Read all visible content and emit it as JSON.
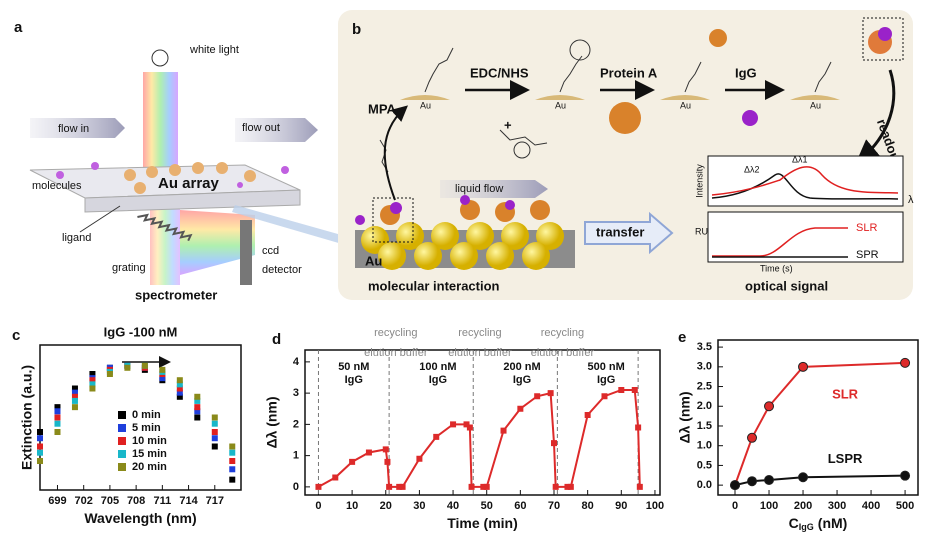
{
  "figure": {
    "a": {
      "letter": "a",
      "white_light": "white light",
      "flow_in": "flow in",
      "flow_out": "flow out",
      "molecules": "molecules",
      "au_array": "Au array",
      "ligand": "ligand",
      "grating": "grating",
      "ccd": "ccd",
      "detector": "detector",
      "spectrometer": "spectrometer"
    },
    "b": {
      "letter": "b",
      "mpa": "MPA",
      "edc": "EDC/NHS",
      "protein_a": "Protein A",
      "igg": "IgG",
      "au": "Au",
      "liquid_flow": "liquid flow",
      "transfer": "transfer",
      "readout": "readout",
      "intensity": "Intensity",
      "lambda": "λ",
      "dl2": "Δλ2",
      "dl1": "Δλ1",
      "ru": "RU",
      "time": "Time (s)",
      "slr": "SLR",
      "spr": "SPR",
      "molecular_interaction": "molecular interaction",
      "optical_signal": "optical signal"
    },
    "c": "c",
    "d": "d",
    "e": "e"
  },
  "chart_data": [
    {
      "type": "scatter",
      "title": "IgG -100 nM",
      "xlabel": "Wavelength (nm)",
      "ylabel": "Extinction (a.u.)",
      "marker": "square",
      "legend": "lower center",
      "x": [
        697,
        699,
        701,
        703,
        705,
        707,
        709,
        711,
        713,
        715,
        717,
        719
      ],
      "xlim": [
        697,
        720
      ],
      "xticks": [
        699,
        702,
        705,
        708,
        711,
        714,
        717
      ],
      "ylim": [
        0.4,
        1.1
      ],
      "series": [
        {
          "name": "0 min",
          "color": "#000000",
          "values": [
            0.68,
            0.8,
            0.89,
            0.96,
            0.99,
            1.0,
            0.98,
            0.93,
            0.85,
            0.75,
            0.61,
            0.45
          ]
        },
        {
          "name": "5 min",
          "color": "#1f3fdc",
          "values": [
            0.65,
            0.78,
            0.87,
            0.94,
            0.99,
            1.0,
            0.99,
            0.94,
            0.87,
            0.78,
            0.65,
            0.5
          ]
        },
        {
          "name": "10 min",
          "color": "#e02020",
          "values": [
            0.61,
            0.75,
            0.85,
            0.93,
            0.98,
            1.0,
            0.99,
            0.96,
            0.89,
            0.8,
            0.68,
            0.54
          ]
        },
        {
          "name": "15 min",
          "color": "#18b7c9",
          "values": [
            0.58,
            0.72,
            0.83,
            0.91,
            0.97,
            1.0,
            1.0,
            0.97,
            0.91,
            0.83,
            0.72,
            0.58
          ]
        },
        {
          "name": "20 min",
          "color": "#8a8a1a",
          "values": [
            0.54,
            0.68,
            0.8,
            0.89,
            0.96,
            0.99,
            1.0,
            0.98,
            0.93,
            0.85,
            0.75,
            0.61
          ]
        }
      ]
    },
    {
      "type": "line",
      "xlabel": "Time (min)",
      "ylabel": "Δλ (nm)",
      "marker": "square",
      "x": [
        0,
        5,
        10,
        15,
        20,
        20.5,
        21,
        24,
        25,
        30,
        35,
        40,
        44,
        45,
        45.5,
        49,
        50,
        55,
        60,
        65,
        69,
        70,
        70.5,
        74,
        75,
        80,
        85,
        90,
        94,
        95,
        95.5
      ],
      "xlim": [
        -4,
        101.5
      ],
      "xticks": [
        0,
        10,
        20,
        30,
        40,
        50,
        60,
        70,
        80,
        90,
        100
      ],
      "ylim": [
        -0.26,
        4.38
      ],
      "yticks": [
        0,
        1,
        2,
        3,
        4
      ],
      "vlines": [
        0,
        21,
        46,
        71,
        95
      ],
      "annotations": {
        "recycling": [
          "recycling",
          "recycling",
          "recycling"
        ],
        "elution_buffer": [
          "elution buffer",
          "elution buffer",
          "elution buffer"
        ],
        "concentrations": [
          "50 nM",
          "100 nM",
          "200 nM",
          "500 nM"
        ],
        "analyte": [
          "IgG",
          "IgG",
          "IgG",
          "IgG"
        ]
      },
      "series": [
        {
          "color": "#dd2a2a",
          "values": [
            0,
            0.3,
            0.8,
            1.1,
            1.2,
            0.8,
            0,
            0,
            0,
            0.9,
            1.6,
            2.0,
            2.0,
            1.9,
            0,
            0,
            0,
            1.8,
            2.5,
            2.9,
            3.0,
            1.4,
            0,
            0,
            0,
            2.3,
            2.9,
            3.1,
            3.1,
            1.9,
            0
          ]
        }
      ]
    },
    {
      "type": "line",
      "xlabel": "C",
      "xlabel_sub": "IgG",
      "xlabel_unit": "(nM)",
      "ylabel": "Δλ (nm)",
      "marker": "circle",
      "legend": "inline",
      "x": [
        0,
        50,
        100,
        200,
        500
      ],
      "xlim": [
        -50,
        538
      ],
      "xticks": [
        0,
        100,
        200,
        300,
        400,
        500
      ],
      "ylim": [
        -0.25,
        3.68
      ],
      "yticks": [
        {
          "value": 0,
          "label": "0.0"
        },
        0.5,
        {
          "value": 1,
          "label": "1.0"
        },
        1.5,
        {
          "value": 2,
          "label": "2.0"
        },
        2.5,
        {
          "value": 3,
          "label": "3.0"
        },
        3.5
      ],
      "series": [
        {
          "name": "SLR",
          "color": "#dd2a2a",
          "values": [
            0,
            1.2,
            2.0,
            3.0,
            3.1
          ]
        },
        {
          "name": "LSPR",
          "color": "#111111",
          "values": [
            0,
            0.1,
            0.13,
            0.2,
            0.24
          ]
        }
      ]
    }
  ]
}
